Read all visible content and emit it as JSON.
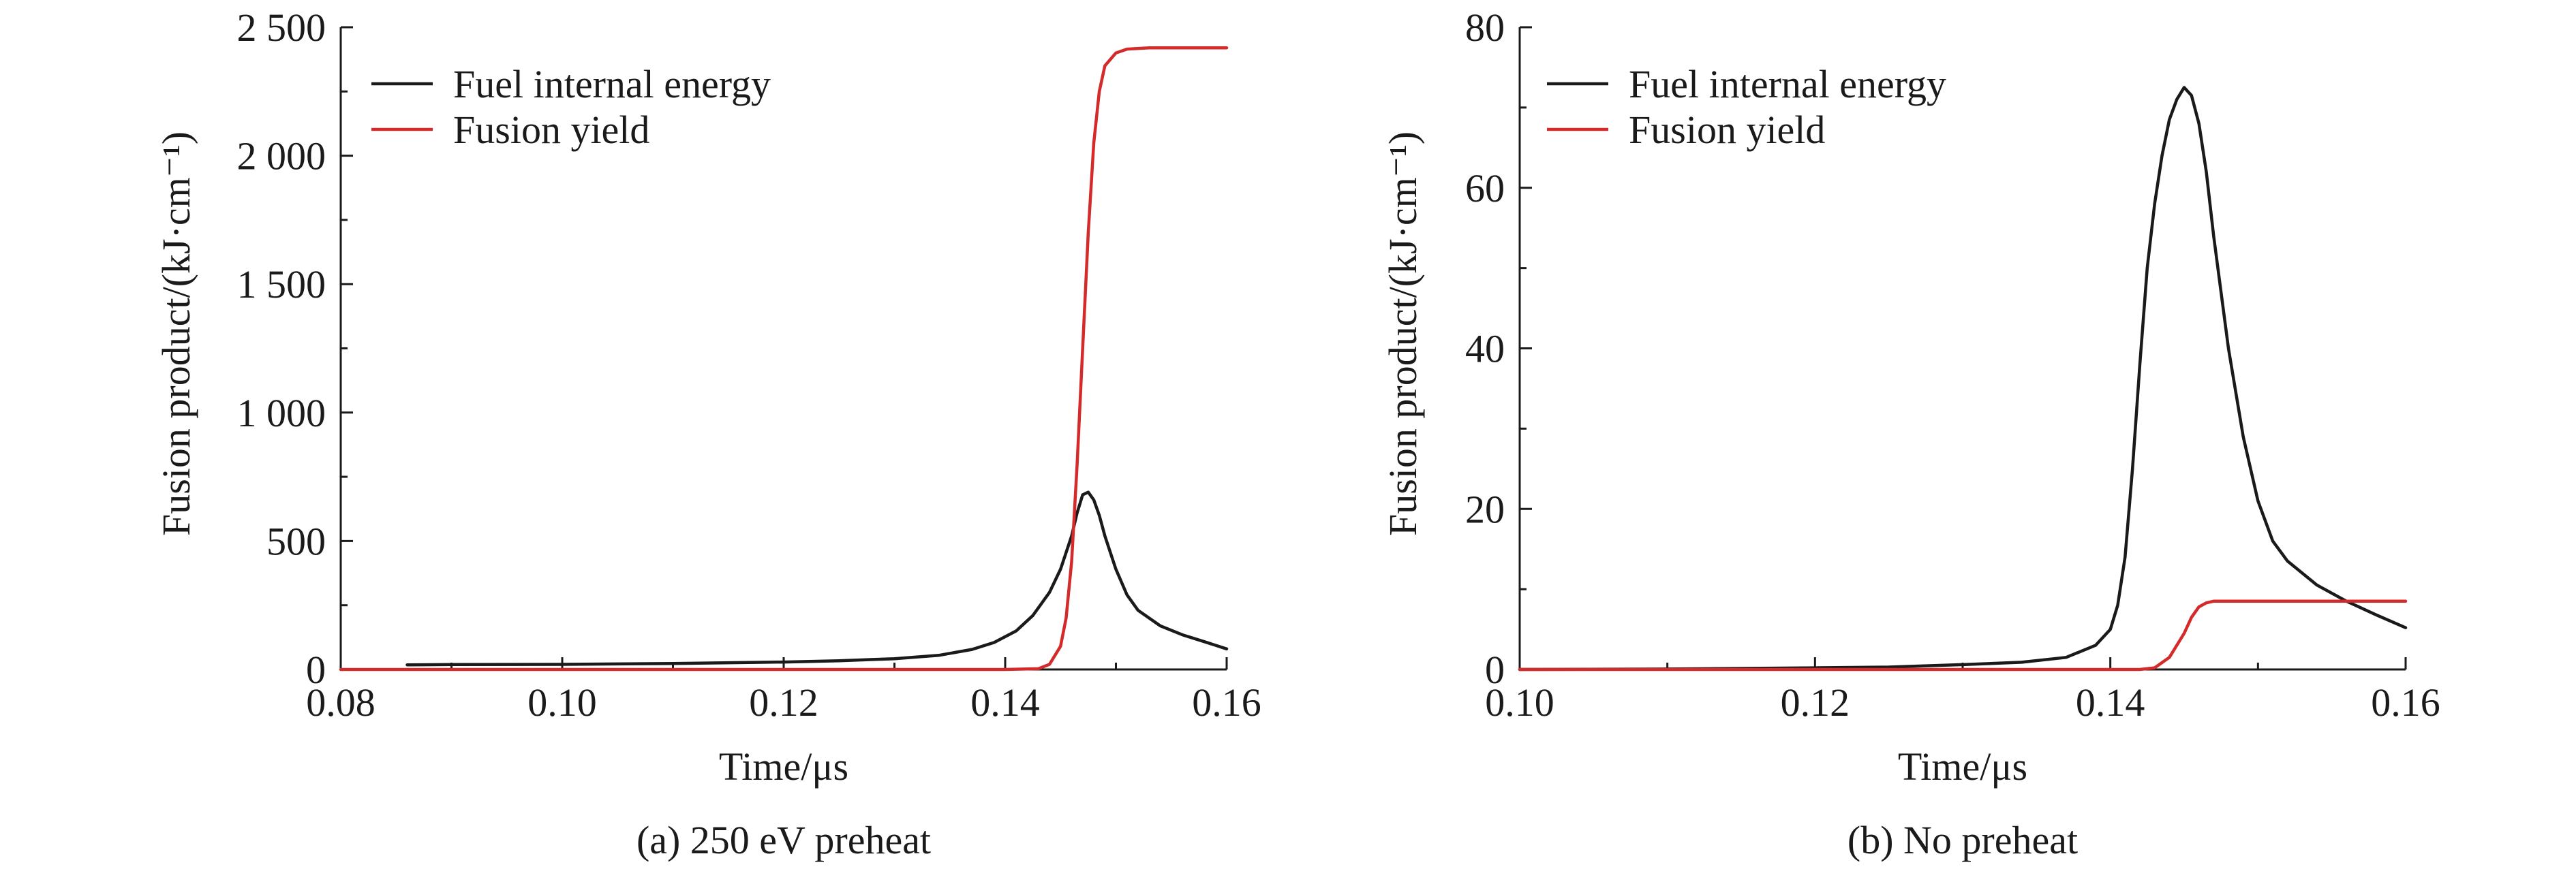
{
  "chart_data": [
    {
      "type": "line",
      "caption": "(a) 250 eV preheat",
      "xlabel": "Time/μs",
      "ylabel": "Fusion product/(kJ·cm⁻¹)",
      "xlim": [
        0.08,
        0.16
      ],
      "ylim": [
        0,
        2500
      ],
      "x_ticks": [
        0.08,
        0.1,
        0.12,
        0.14,
        0.16
      ],
      "x_tick_labels": [
        "0.08",
        "0.10",
        "0.12",
        "0.14",
        "0.16"
      ],
      "y_ticks": [
        0,
        500,
        1000,
        1500,
        2000,
        2500
      ],
      "y_tick_labels": [
        "0",
        "500",
        "1 000",
        "1 500",
        "2 000",
        "2 500"
      ],
      "legend_position": "top-left",
      "series": [
        {
          "name": "Fuel internal energy",
          "color": "#1a1a1a",
          "points": [
            [
              0.086,
              18
            ],
            [
              0.09,
              19
            ],
            [
              0.1,
              20
            ],
            [
              0.11,
              23
            ],
            [
              0.12,
              29
            ],
            [
              0.125,
              34
            ],
            [
              0.13,
              42
            ],
            [
              0.134,
              55
            ],
            [
              0.137,
              78
            ],
            [
              0.139,
              105
            ],
            [
              0.141,
              150
            ],
            [
              0.1425,
              210
            ],
            [
              0.144,
              300
            ],
            [
              0.145,
              390
            ],
            [
              0.146,
              520
            ],
            [
              0.1465,
              610
            ],
            [
              0.147,
              680
            ],
            [
              0.1475,
              690
            ],
            [
              0.148,
              660
            ],
            [
              0.1485,
              600
            ],
            [
              0.149,
              520
            ],
            [
              0.15,
              390
            ],
            [
              0.151,
              290
            ],
            [
              0.152,
              230
            ],
            [
              0.154,
              170
            ],
            [
              0.156,
              135
            ],
            [
              0.158,
              108
            ],
            [
              0.16,
              80
            ]
          ]
        },
        {
          "name": "Fusion yield",
          "color": "#d42a2a",
          "points": [
            [
              0.08,
              0
            ],
            [
              0.14,
              0
            ],
            [
              0.143,
              3
            ],
            [
              0.144,
              20
            ],
            [
              0.145,
              90
            ],
            [
              0.1455,
              200
            ],
            [
              0.146,
              420
            ],
            [
              0.1465,
              800
            ],
            [
              0.147,
              1250
            ],
            [
              0.1475,
              1700
            ],
            [
              0.148,
              2050
            ],
            [
              0.1485,
              2250
            ],
            [
              0.149,
              2350
            ],
            [
              0.15,
              2400
            ],
            [
              0.151,
              2415
            ],
            [
              0.153,
              2420
            ],
            [
              0.16,
              2420
            ]
          ]
        }
      ]
    },
    {
      "type": "line",
      "caption": "(b) No preheat",
      "xlabel": "Time/μs",
      "ylabel": "Fusion product/(kJ·cm⁻¹)",
      "xlim": [
        0.1,
        0.16
      ],
      "ylim": [
        0,
        80
      ],
      "x_ticks": [
        0.1,
        0.12,
        0.14,
        0.16
      ],
      "x_tick_labels": [
        "0.10",
        "0.12",
        "0.14",
        "0.16"
      ],
      "y_ticks": [
        0,
        20,
        40,
        60,
        80
      ],
      "y_tick_labels": [
        "0",
        "20",
        "40",
        "60",
        "80"
      ],
      "legend_position": "top-left",
      "series": [
        {
          "name": "Fuel internal energy",
          "color": "#1a1a1a",
          "points": [
            [
              0.1,
              0
            ],
            [
              0.11,
              0.05
            ],
            [
              0.12,
              0.2
            ],
            [
              0.125,
              0.3
            ],
            [
              0.13,
              0.6
            ],
            [
              0.134,
              0.9
            ],
            [
              0.137,
              1.5
            ],
            [
              0.139,
              3
            ],
            [
              0.14,
              5
            ],
            [
              0.1405,
              8
            ],
            [
              0.141,
              14
            ],
            [
              0.1415,
              25
            ],
            [
              0.142,
              38
            ],
            [
              0.1425,
              50
            ],
            [
              0.143,
              58
            ],
            [
              0.1435,
              64
            ],
            [
              0.144,
              68.5
            ],
            [
              0.1445,
              71
            ],
            [
              0.145,
              72.5
            ],
            [
              0.1455,
              71.5
            ],
            [
              0.146,
              68
            ],
            [
              0.1465,
              62
            ],
            [
              0.147,
              54
            ],
            [
              0.148,
              40
            ],
            [
              0.149,
              29
            ],
            [
              0.15,
              21
            ],
            [
              0.151,
              16
            ],
            [
              0.152,
              13.5
            ],
            [
              0.154,
              10.5
            ],
            [
              0.156,
              8.5
            ],
            [
              0.158,
              6.8
            ],
            [
              0.16,
              5.2
            ]
          ]
        },
        {
          "name": "Fusion yield",
          "color": "#d42a2a",
          "points": [
            [
              0.1,
              0
            ],
            [
              0.142,
              0
            ],
            [
              0.143,
              0.2
            ],
            [
              0.144,
              1.5
            ],
            [
              0.145,
              4.5
            ],
            [
              0.1455,
              6.5
            ],
            [
              0.146,
              7.8
            ],
            [
              0.1465,
              8.3
            ],
            [
              0.147,
              8.5
            ],
            [
              0.16,
              8.5
            ]
          ]
        }
      ]
    }
  ]
}
